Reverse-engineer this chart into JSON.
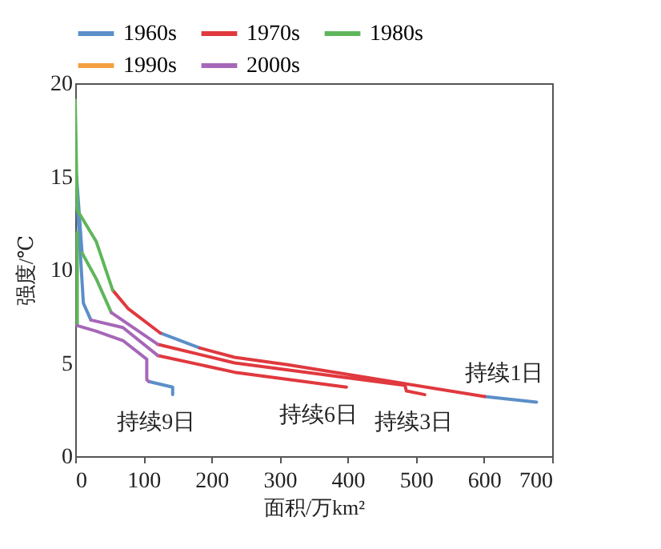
{
  "chart_data": {
    "type": "line",
    "xlabel": "面积/万km²",
    "ylabel": "强度/℃",
    "xlim": [
      0,
      700
    ],
    "xticks": [
      0,
      100,
      200,
      300,
      400,
      500,
      600,
      700
    ],
    "ylim": [
      0,
      20
    ],
    "yticks": [
      0,
      5,
      10,
      15,
      20
    ],
    "grid": false,
    "legend": "top",
    "marker": "none",
    "line_style": "solid",
    "series": [
      {
        "name": "1960s",
        "color": "#5b8fc8",
        "x": [
          125,
          183,
          null,
          601,
          677,
          null,
          2,
          10,
          null,
          3,
          12,
          23,
          null,
          108,
          143,
          143
        ],
        "values": [
          6.6,
          5.8,
          null,
          3.2,
          2.9,
          null,
          15,
          10.9,
          null,
          13.5,
          8.2,
          7.3,
          null,
          4.0,
          3.7,
          3.3
        ]
      },
      {
        "name": "1970s",
        "color": "#e0393e",
        "x": [
          55,
          78,
          125,
          null,
          183,
          234,
          312,
          601,
          null,
          121,
          234,
          484,
          486,
          513,
          null,
          121,
          234,
          398
        ],
        "values": [
          8.9,
          7.9,
          6.6,
          null,
          5.8,
          5.3,
          4.9,
          3.2,
          null,
          6.0,
          5.0,
          3.8,
          3.5,
          3.3,
          null,
          5.4,
          4.5,
          3.7
        ]
      },
      {
        "name": "1980s",
        "color": "#5fb65a",
        "x": [
          0,
          3,
          31,
          55,
          null,
          10,
          31,
          53,
          null,
          3,
          3
        ],
        "values": [
          19.1,
          13.2,
          11.5,
          8.9,
          null,
          10.9,
          9.5,
          7.7,
          null,
          12,
          7.0
        ]
      },
      {
        "name": "1990s",
        "color": "#f5a040"
      },
      {
        "name": "2000s",
        "color": "#a667b8",
        "x": [
          53,
          121,
          null,
          23,
          70,
          121,
          null,
          3,
          31,
          70,
          105,
          105,
          108
        ],
        "values": [
          7.7,
          6.0,
          null,
          7.3,
          6.9,
          5.4,
          null,
          7.0,
          6.7,
          6.2,
          5.2,
          4.1,
          4.0
        ]
      }
    ],
    "annotations": [
      "持续9日",
      "持续6日",
      "持续3日",
      "持续1日"
    ]
  }
}
